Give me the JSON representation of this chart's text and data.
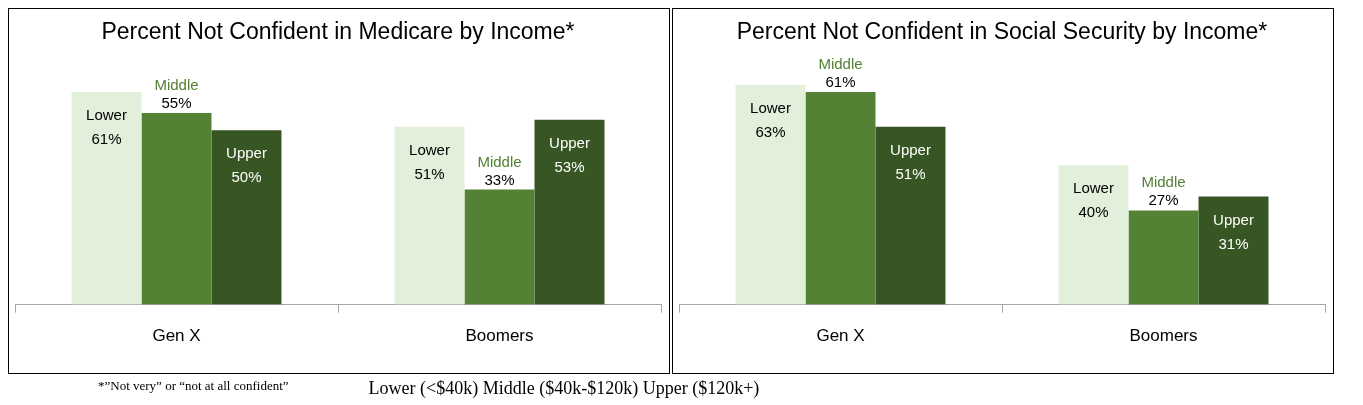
{
  "chart_data": [
    {
      "type": "bar",
      "title": "Percent Not Confident in Medicare by Income*",
      "categories": [
        "Gen X",
        "Boomers"
      ],
      "series": [
        {
          "name": "Lower",
          "color": "#e2efda",
          "values": [
            61,
            51
          ],
          "value_labels": [
            "61%",
            "51%"
          ]
        },
        {
          "name": "Middle",
          "color": "#548235",
          "values": [
            55,
            33
          ],
          "value_labels": [
            "55%",
            "33%"
          ]
        },
        {
          "name": "Upper",
          "color": "#375623",
          "values": [
            50,
            53
          ],
          "value_labels": [
            "50%",
            "53%"
          ]
        }
      ],
      "legend": false,
      "grid": false,
      "tick_labels": "x",
      "annotations": [
        "*”Not very” or “not at all confident”",
        "Lower (<$40k) Middle ($40k-$120k) Upper ($120k+)"
      ]
    },
    {
      "type": "bar",
      "title": "Percent Not Confident in Social Security by Income*",
      "categories": [
        "Gen X",
        "Boomers"
      ],
      "series": [
        {
          "name": "Lower",
          "color": "#e2efda",
          "values": [
            63,
            40
          ],
          "value_labels": [
            "63%",
            "40%"
          ]
        },
        {
          "name": "Middle",
          "color": "#548235",
          "values": [
            61,
            27
          ],
          "value_labels": [
            "61%",
            "27%"
          ]
        },
        {
          "name": "Upper",
          "color": "#375623",
          "values": [
            51,
            31
          ],
          "value_labels": [
            "51%",
            "31%"
          ]
        }
      ],
      "legend": false,
      "grid": false,
      "tick_labels": "x"
    }
  ]
}
